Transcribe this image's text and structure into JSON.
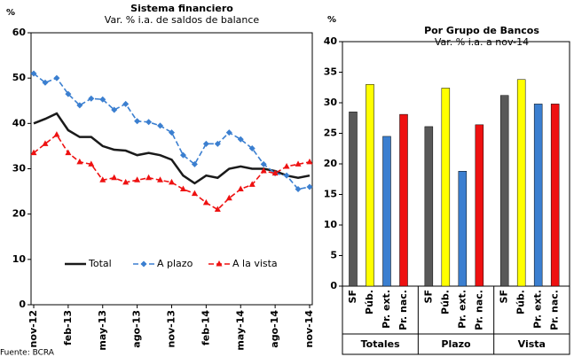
{
  "chart_data": [
    {
      "type": "line",
      "title": "Sistema financiero",
      "subtitle": "Var. % i.a. de saldos de balance",
      "y_label": "%",
      "categories": [
        "nov-12",
        null,
        null,
        "feb-13",
        null,
        null,
        "may-13",
        null,
        null,
        "ago-13",
        null,
        null,
        "nov-13",
        null,
        null,
        "feb-14",
        null,
        null,
        "may-14",
        null,
        null,
        "ago-14",
        null,
        null,
        "nov-14"
      ],
      "series": [
        {
          "name": "Total",
          "color": "#1a1a1a",
          "dashed": false,
          "marker": null,
          "values": [
            40,
            41,
            42.2,
            38.5,
            37,
            37,
            35,
            34.2,
            34,
            33,
            33.5,
            33,
            32,
            28.5,
            26.8,
            28.5,
            28,
            30,
            30.5,
            30,
            30,
            29.5,
            28.5,
            28,
            28.5
          ]
        },
        {
          "name": "A plazo",
          "color": "#3b7fd0",
          "dashed": true,
          "marker": "diamond",
          "values": [
            51,
            49,
            50,
            46.5,
            44,
            45.5,
            45.3,
            43,
            44.3,
            40.5,
            40.3,
            39.5,
            38,
            33,
            31,
            35.5,
            35.5,
            38,
            36.5,
            34.5,
            31,
            29,
            28.5,
            25.5,
            26
          ]
        },
        {
          "name": "A la vista",
          "color": "#ee1111",
          "dashed": true,
          "marker": "triangle",
          "values": [
            33.5,
            35.5,
            37.5,
            33.5,
            31.5,
            31,
            27.5,
            28,
            27,
            27.5,
            28,
            27.5,
            27,
            25.5,
            24.5,
            22.5,
            21,
            23.5,
            25.5,
            26.5,
            29.5,
            29,
            30.5,
            31,
            31.5
          ]
        }
      ],
      "ylim": [
        0,
        60
      ],
      "yticks": [
        0,
        10,
        20,
        30,
        40,
        50,
        60
      ],
      "legend": "bottom",
      "source": "Fuente: BCRA"
    },
    {
      "type": "grouped_bar",
      "title": "Por Grupo de Bancos",
      "subtitle": "Var. % i.a. a nov-14",
      "y_label": "%",
      "categories": [
        "SF",
        "Púb.",
        "Pr. ext.",
        "Pr. nac."
      ],
      "colors": [
        "#595959",
        "#ffff00",
        "#3b7fd0",
        "#ee1111"
      ],
      "groups": [
        {
          "name": "Totales",
          "values": [
            28.5,
            33,
            24.5,
            28.1
          ]
        },
        {
          "name": "Plazo",
          "values": [
            26.1,
            32.4,
            18.8,
            26.4
          ]
        },
        {
          "name": "Vista",
          "values": [
            31.2,
            33.8,
            29.8,
            29.8
          ]
        }
      ],
      "ylim": [
        0,
        40
      ],
      "yticks": [
        0,
        5,
        10,
        15,
        20,
        25,
        30,
        35,
        40
      ]
    }
  ]
}
